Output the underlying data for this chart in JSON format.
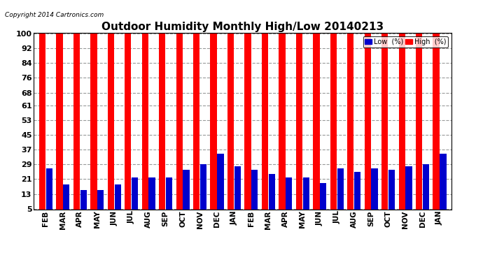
{
  "title": "Outdoor Humidity Monthly High/Low 20140213",
  "copyright": "Copyright 2014 Cartronics.com",
  "months": [
    "FEB",
    "MAR",
    "APR",
    "MAY",
    "JUN",
    "JUL",
    "AUG",
    "SEP",
    "OCT",
    "NOV",
    "DEC",
    "JAN",
    "FEB",
    "MAR",
    "APR",
    "MAY",
    "JUN",
    "JUL",
    "AUG",
    "SEP",
    "OCT",
    "NOV",
    "DEC",
    "JAN"
  ],
  "high_values": [
    100,
    100,
    100,
    100,
    100,
    100,
    100,
    100,
    100,
    100,
    100,
    100,
    100,
    100,
    100,
    100,
    100,
    100,
    100,
    100,
    100,
    100,
    100,
    100
  ],
  "low_values": [
    27,
    18,
    15,
    15,
    18,
    22,
    22,
    22,
    26,
    29,
    35,
    28,
    26,
    24,
    22,
    22,
    19,
    27,
    25,
    27,
    26,
    28,
    29,
    35
  ],
  "high_color": "#ff0000",
  "low_color": "#0000cc",
  "bg_color": "#ffffff",
  "plot_bg_color": "#ffffff",
  "yticks": [
    5,
    13,
    21,
    29,
    37,
    45,
    53,
    61,
    68,
    76,
    84,
    92,
    100
  ],
  "ymin": 5,
  "ymax": 100,
  "grid_color": "#999999",
  "title_fontsize": 11,
  "legend_low_label": "Low  (%)",
  "legend_high_label": "High  (%)"
}
